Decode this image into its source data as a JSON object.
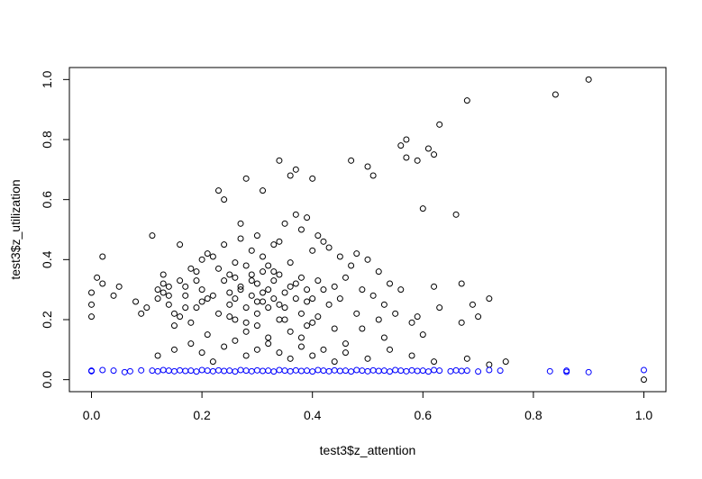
{
  "chart_data": {
    "type": "scatter",
    "title": "",
    "xlabel": "test3$z_attention",
    "ylabel": "test3$z_utilization",
    "xlim": [
      -0.04,
      1.04
    ],
    "ylim": [
      -0.04,
      1.04
    ],
    "xticks": [
      "0.0",
      "0.2",
      "0.4",
      "0.6",
      "0.8",
      "1.0"
    ],
    "yticks": [
      "0.0",
      "0.2",
      "0.4",
      "0.6",
      "0.8",
      "1.0"
    ],
    "grid": false,
    "legend": "none",
    "series": [
      {
        "color": "#000000",
        "marker": "open-circle",
        "points": [
          [
            0.0,
            0.29
          ],
          [
            0.0,
            0.25
          ],
          [
            0.0,
            0.21
          ],
          [
            0.01,
            0.34
          ],
          [
            0.02,
            0.41
          ],
          [
            0.02,
            0.32
          ],
          [
            0.04,
            0.28
          ],
          [
            0.05,
            0.31
          ],
          [
            0.08,
            0.26
          ],
          [
            0.09,
            0.22
          ],
          [
            0.1,
            0.24
          ],
          [
            0.11,
            0.48
          ],
          [
            0.12,
            0.3
          ],
          [
            0.12,
            0.27
          ],
          [
            0.13,
            0.32
          ],
          [
            0.13,
            0.29
          ],
          [
            0.14,
            0.31
          ],
          [
            0.14,
            0.28
          ],
          [
            0.15,
            0.22
          ],
          [
            0.15,
            0.18
          ],
          [
            0.16,
            0.45
          ],
          [
            0.16,
            0.33
          ],
          [
            0.17,
            0.28
          ],
          [
            0.17,
            0.24
          ],
          [
            0.18,
            0.19
          ],
          [
            0.18,
            0.37
          ],
          [
            0.19,
            0.36
          ],
          [
            0.2,
            0.3
          ],
          [
            0.2,
            0.26
          ],
          [
            0.2,
            0.4
          ],
          [
            0.21,
            0.42
          ],
          [
            0.21,
            0.15
          ],
          [
            0.22,
            0.41
          ],
          [
            0.22,
            0.28
          ],
          [
            0.23,
            0.63
          ],
          [
            0.23,
            0.37
          ],
          [
            0.24,
            0.6
          ],
          [
            0.24,
            0.45
          ],
          [
            0.24,
            0.33
          ],
          [
            0.25,
            0.29
          ],
          [
            0.25,
            0.25
          ],
          [
            0.25,
            0.21
          ],
          [
            0.26,
            0.39
          ],
          [
            0.26,
            0.34
          ],
          [
            0.26,
            0.27
          ],
          [
            0.27,
            0.52
          ],
          [
            0.27,
            0.47
          ],
          [
            0.27,
            0.3
          ],
          [
            0.28,
            0.67
          ],
          [
            0.28,
            0.38
          ],
          [
            0.28,
            0.24
          ],
          [
            0.28,
            0.19
          ],
          [
            0.29,
            0.43
          ],
          [
            0.29,
            0.35
          ],
          [
            0.29,
            0.28
          ],
          [
            0.3,
            0.48
          ],
          [
            0.3,
            0.32
          ],
          [
            0.3,
            0.26
          ],
          [
            0.3,
            0.22
          ],
          [
            0.31,
            0.63
          ],
          [
            0.31,
            0.41
          ],
          [
            0.31,
            0.36
          ],
          [
            0.31,
            0.29
          ],
          [
            0.32,
            0.38
          ],
          [
            0.32,
            0.3
          ],
          [
            0.32,
            0.24
          ],
          [
            0.33,
            0.45
          ],
          [
            0.33,
            0.33
          ],
          [
            0.33,
            0.27
          ],
          [
            0.34,
            0.73
          ],
          [
            0.34,
            0.46
          ],
          [
            0.34,
            0.35
          ],
          [
            0.34,
            0.25
          ],
          [
            0.35,
            0.52
          ],
          [
            0.35,
            0.29
          ],
          [
            0.35,
            0.2
          ],
          [
            0.36,
            0.68
          ],
          [
            0.36,
            0.39
          ],
          [
            0.36,
            0.31
          ],
          [
            0.37,
            0.7
          ],
          [
            0.37,
            0.55
          ],
          [
            0.37,
            0.27
          ],
          [
            0.38,
            0.5
          ],
          [
            0.38,
            0.34
          ],
          [
            0.38,
            0.22
          ],
          [
            0.39,
            0.54
          ],
          [
            0.39,
            0.3
          ],
          [
            0.39,
            0.18
          ],
          [
            0.4,
            0.67
          ],
          [
            0.4,
            0.43
          ],
          [
            0.4,
            0.27
          ],
          [
            0.41,
            0.48
          ],
          [
            0.41,
            0.33
          ],
          [
            0.41,
            0.21
          ],
          [
            0.42,
            0.46
          ],
          [
            0.42,
            0.3
          ],
          [
            0.43,
            0.44
          ],
          [
            0.43,
            0.25
          ],
          [
            0.44,
            0.31
          ],
          [
            0.44,
            0.17
          ],
          [
            0.45,
            0.41
          ],
          [
            0.45,
            0.27
          ],
          [
            0.46,
            0.34
          ],
          [
            0.46,
            0.12
          ],
          [
            0.47,
            0.73
          ],
          [
            0.47,
            0.38
          ],
          [
            0.48,
            0.42
          ],
          [
            0.48,
            0.22
          ],
          [
            0.49,
            0.3
          ],
          [
            0.49,
            0.17
          ],
          [
            0.5,
            0.71
          ],
          [
            0.5,
            0.4
          ],
          [
            0.51,
            0.68
          ],
          [
            0.51,
            0.28
          ],
          [
            0.52,
            0.36
          ],
          [
            0.52,
            0.2
          ],
          [
            0.53,
            0.25
          ],
          [
            0.53,
            0.14
          ],
          [
            0.54,
            0.32
          ],
          [
            0.55,
            0.22
          ],
          [
            0.56,
            0.78
          ],
          [
            0.56,
            0.3
          ],
          [
            0.57,
            0.8
          ],
          [
            0.57,
            0.74
          ],
          [
            0.58,
            0.19
          ],
          [
            0.59,
            0.73
          ],
          [
            0.59,
            0.21
          ],
          [
            0.6,
            0.57
          ],
          [
            0.6,
            0.15
          ],
          [
            0.61,
            0.77
          ],
          [
            0.62,
            0.75
          ],
          [
            0.62,
            0.31
          ],
          [
            0.63,
            0.85
          ],
          [
            0.63,
            0.24
          ],
          [
            0.66,
            0.55
          ],
          [
            0.67,
            0.32
          ],
          [
            0.67,
            0.19
          ],
          [
            0.68,
            0.93
          ],
          [
            0.69,
            0.25
          ],
          [
            0.7,
            0.21
          ],
          [
            0.72,
            0.27
          ],
          [
            0.84,
            0.95
          ],
          [
            0.9,
            1.0
          ],
          [
            1.0,
            0.0
          ],
          [
            0.12,
            0.08
          ],
          [
            0.15,
            0.1
          ],
          [
            0.18,
            0.12
          ],
          [
            0.2,
            0.09
          ],
          [
            0.22,
            0.06
          ],
          [
            0.24,
            0.11
          ],
          [
            0.26,
            0.13
          ],
          [
            0.28,
            0.08
          ],
          [
            0.3,
            0.1
          ],
          [
            0.32,
            0.12
          ],
          [
            0.34,
            0.09
          ],
          [
            0.36,
            0.07
          ],
          [
            0.38,
            0.11
          ],
          [
            0.4,
            0.08
          ],
          [
            0.42,
            0.1
          ],
          [
            0.44,
            0.06
          ],
          [
            0.46,
            0.09
          ],
          [
            0.5,
            0.07
          ],
          [
            0.54,
            0.1
          ],
          [
            0.58,
            0.08
          ],
          [
            0.62,
            0.06
          ],
          [
            0.68,
            0.07
          ],
          [
            0.72,
            0.05
          ],
          [
            0.75,
            0.06
          ],
          [
            0.25,
            0.35
          ],
          [
            0.27,
            0.31
          ],
          [
            0.29,
            0.33
          ],
          [
            0.31,
            0.26
          ],
          [
            0.33,
            0.36
          ],
          [
            0.35,
            0.24
          ],
          [
            0.37,
            0.32
          ],
          [
            0.39,
            0.26
          ],
          [
            0.26,
            0.2
          ],
          [
            0.28,
            0.16
          ],
          [
            0.3,
            0.18
          ],
          [
            0.32,
            0.14
          ],
          [
            0.34,
            0.2
          ],
          [
            0.36,
            0.16
          ],
          [
            0.38,
            0.14
          ],
          [
            0.4,
            0.19
          ],
          [
            0.19,
            0.24
          ],
          [
            0.21,
            0.27
          ],
          [
            0.23,
            0.22
          ],
          [
            0.17,
            0.31
          ],
          [
            0.19,
            0.33
          ],
          [
            0.14,
            0.25
          ],
          [
            0.16,
            0.21
          ],
          [
            0.13,
            0.35
          ]
        ]
      },
      {
        "color": "#0000ff",
        "marker": "open-circle",
        "points": [
          [
            0.0,
            0.03
          ],
          [
            0.0,
            0.028
          ],
          [
            0.02,
            0.032
          ],
          [
            0.04,
            0.03
          ],
          [
            0.06,
            0.025
          ],
          [
            0.07,
            0.028
          ],
          [
            0.09,
            0.031
          ],
          [
            0.11,
            0.03
          ],
          [
            0.12,
            0.028
          ],
          [
            0.13,
            0.032
          ],
          [
            0.14,
            0.03
          ],
          [
            0.15,
            0.028
          ],
          [
            0.16,
            0.031
          ],
          [
            0.17,
            0.029
          ],
          [
            0.18,
            0.03
          ],
          [
            0.19,
            0.027
          ],
          [
            0.2,
            0.032
          ],
          [
            0.21,
            0.03
          ],
          [
            0.22,
            0.028
          ],
          [
            0.23,
            0.031
          ],
          [
            0.24,
            0.029
          ],
          [
            0.25,
            0.03
          ],
          [
            0.26,
            0.027
          ],
          [
            0.27,
            0.032
          ],
          [
            0.28,
            0.03
          ],
          [
            0.29,
            0.028
          ],
          [
            0.3,
            0.031
          ],
          [
            0.31,
            0.029
          ],
          [
            0.32,
            0.03
          ],
          [
            0.33,
            0.027
          ],
          [
            0.34,
            0.032
          ],
          [
            0.35,
            0.03
          ],
          [
            0.36,
            0.028
          ],
          [
            0.37,
            0.031
          ],
          [
            0.38,
            0.029
          ],
          [
            0.39,
            0.03
          ],
          [
            0.4,
            0.027
          ],
          [
            0.41,
            0.032
          ],
          [
            0.42,
            0.03
          ],
          [
            0.43,
            0.028
          ],
          [
            0.44,
            0.031
          ],
          [
            0.45,
            0.029
          ],
          [
            0.46,
            0.03
          ],
          [
            0.47,
            0.027
          ],
          [
            0.48,
            0.032
          ],
          [
            0.49,
            0.03
          ],
          [
            0.5,
            0.028
          ],
          [
            0.51,
            0.031
          ],
          [
            0.52,
            0.029
          ],
          [
            0.53,
            0.03
          ],
          [
            0.54,
            0.027
          ],
          [
            0.55,
            0.032
          ],
          [
            0.56,
            0.03
          ],
          [
            0.57,
            0.028
          ],
          [
            0.58,
            0.031
          ],
          [
            0.59,
            0.029
          ],
          [
            0.6,
            0.03
          ],
          [
            0.61,
            0.027
          ],
          [
            0.62,
            0.032
          ],
          [
            0.63,
            0.03
          ],
          [
            0.65,
            0.028
          ],
          [
            0.66,
            0.031
          ],
          [
            0.67,
            0.029
          ],
          [
            0.68,
            0.03
          ],
          [
            0.7,
            0.027
          ],
          [
            0.72,
            0.032
          ],
          [
            0.74,
            0.03
          ],
          [
            0.83,
            0.028
          ],
          [
            0.86,
            0.03
          ],
          [
            0.86,
            0.026
          ],
          [
            0.9,
            0.025
          ],
          [
            1.0,
            0.032
          ]
        ]
      }
    ]
  }
}
